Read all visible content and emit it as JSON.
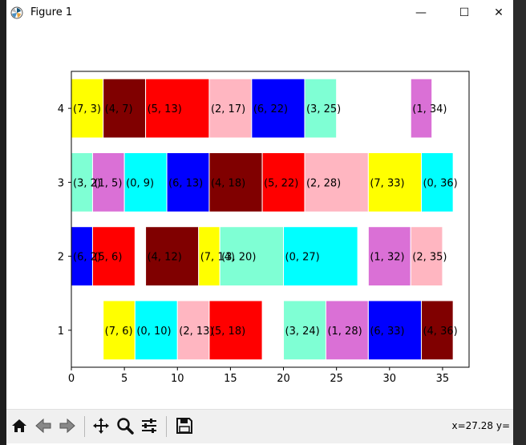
{
  "window": {
    "title": "Figure 1",
    "minimize_glyph": "—",
    "maximize_glyph": "☐",
    "close_glyph": "✕"
  },
  "toolbar": {
    "buttons": [
      "home-icon",
      "back-icon",
      "forward-icon",
      "pan-icon",
      "zoom-icon",
      "configure-subplots-icon",
      "save-icon"
    ],
    "coords_text": "x=27.28 y="
  },
  "chart_data": {
    "type": "bar",
    "orientation": "horizontal",
    "title": "",
    "xlabel": "",
    "ylabel": "",
    "xlim": [
      0,
      37.5
    ],
    "ylim": [
      0.5,
      4.5
    ],
    "xticks": [
      0,
      5,
      10,
      15,
      20,
      25,
      30,
      35
    ],
    "yticks": [
      1,
      2,
      3,
      4
    ],
    "grid": false,
    "colors": {
      "0": "#00ffff",
      "1": "#da70d6",
      "2": "#ffb6c1",
      "3": "#7fffd4",
      "4": "#800000",
      "5": "#ff0000",
      "6": "#0000ff",
      "7": "#ffff00"
    },
    "bars": [
      {
        "row": 4,
        "left": 0,
        "width": 3,
        "id": 7,
        "label": "(7, 3)"
      },
      {
        "row": 4,
        "left": 3,
        "width": 4,
        "id": 4,
        "label": "(4, 7)"
      },
      {
        "row": 4,
        "left": 7,
        "width": 6,
        "id": 5,
        "label": "(5, 13)"
      },
      {
        "row": 4,
        "left": 13,
        "width": 4,
        "id": 2,
        "label": "(2, 17)"
      },
      {
        "row": 4,
        "left": 17,
        "width": 5,
        "id": 6,
        "label": "(6, 22)"
      },
      {
        "row": 4,
        "left": 22,
        "width": 3,
        "id": 3,
        "label": "(3, 25)"
      },
      {
        "row": 4,
        "left": 32,
        "width": 2,
        "id": 1,
        "label": "(1, 34)"
      },
      {
        "row": 3,
        "left": 0,
        "width": 2,
        "id": 3,
        "label": "(3, 2)"
      },
      {
        "row": 3,
        "left": 2,
        "width": 3,
        "id": 1,
        "label": "(1, 5)"
      },
      {
        "row": 3,
        "left": 5,
        "width": 4,
        "id": 0,
        "label": "(0, 9)"
      },
      {
        "row": 3,
        "left": 9,
        "width": 4,
        "id": 6,
        "label": "(6, 13)"
      },
      {
        "row": 3,
        "left": 13,
        "width": 5,
        "id": 4,
        "label": "(4, 18)"
      },
      {
        "row": 3,
        "left": 18,
        "width": 4,
        "id": 5,
        "label": "(5, 22)"
      },
      {
        "row": 3,
        "left": 22,
        "width": 6,
        "id": 2,
        "label": "(2, 28)"
      },
      {
        "row": 3,
        "left": 28,
        "width": 5,
        "id": 7,
        "label": "(7, 33)"
      },
      {
        "row": 3,
        "left": 33,
        "width": 3,
        "id": 0,
        "label": "(0, 36)"
      },
      {
        "row": 2,
        "left": 0,
        "width": 2,
        "id": 6,
        "label": "(6, 2)"
      },
      {
        "row": 2,
        "left": 2,
        "width": 4,
        "id": 5,
        "label": "(5, 6)"
      },
      {
        "row": 2,
        "left": 7,
        "width": 5,
        "id": 4,
        "label": "(4, 12)"
      },
      {
        "row": 2,
        "left": 12,
        "width": 2,
        "id": 7,
        "label": "(7, 14)"
      },
      {
        "row": 2,
        "left": 14,
        "width": 6,
        "id": 3,
        "label": "(3, 20)"
      },
      {
        "row": 2,
        "left": 20,
        "width": 7,
        "id": 0,
        "label": "(0, 27)"
      },
      {
        "row": 2,
        "left": 28,
        "width": 4,
        "id": 1,
        "label": "(1, 32)"
      },
      {
        "row": 2,
        "left": 32,
        "width": 3,
        "id": 2,
        "label": "(2, 35)"
      },
      {
        "row": 1,
        "left": 3,
        "width": 3,
        "id": 7,
        "label": "(7, 6)"
      },
      {
        "row": 1,
        "left": 6,
        "width": 4,
        "id": 0,
        "label": "(0, 10)"
      },
      {
        "row": 1,
        "left": 10,
        "width": 3,
        "id": 2,
        "label": "(2, 13)"
      },
      {
        "row": 1,
        "left": 13,
        "width": 5,
        "id": 5,
        "label": "(5, 18)"
      },
      {
        "row": 1,
        "left": 20,
        "width": 4,
        "id": 3,
        "label": "(3, 24)"
      },
      {
        "row": 1,
        "left": 24,
        "width": 4,
        "id": 1,
        "label": "(1, 28)"
      },
      {
        "row": 1,
        "left": 28,
        "width": 5,
        "id": 6,
        "label": "(6, 33)"
      },
      {
        "row": 1,
        "left": 33,
        "width": 3,
        "id": 4,
        "label": "(4, 36)"
      }
    ]
  }
}
